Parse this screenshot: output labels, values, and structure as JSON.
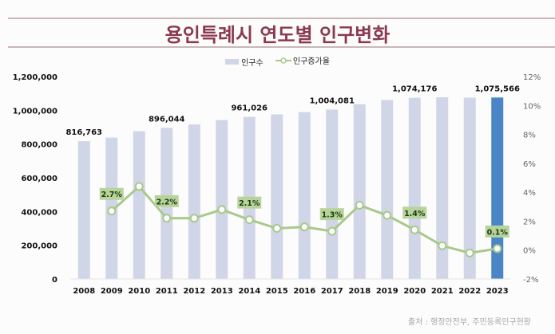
{
  "title": "용인특례시 연도별 인구변화",
  "legend": {
    "bar_label": "인구수",
    "line_label": "인구증가율"
  },
  "source": "출처 : 행정안전부, 주민등록인구현황",
  "colors": {
    "title": "#8a3a50",
    "bar": "#d0d6e8",
    "bar_highlight": "#4a86c5",
    "highlight_label": "#4a86c5",
    "line": "#a9c98a",
    "label_box": "#b8d49c"
  },
  "chart_data": {
    "type": "bar",
    "title": "용인특례시 연도별 인구변화",
    "categories": [
      "2008",
      "2009",
      "2010",
      "2011",
      "2012",
      "2013",
      "2014",
      "2015",
      "2016",
      "2017",
      "2018",
      "2019",
      "2020",
      "2021",
      "2022",
      "2023"
    ],
    "series": [
      {
        "name": "인구수",
        "type": "bar",
        "axis": "left",
        "values": [
          816763,
          838000,
          876000,
          896044,
          916000,
          942000,
          961026,
          976000,
          989000,
          1004081,
          1036000,
          1061000,
          1074176,
          1077000,
          1075000,
          1075566
        ],
        "data_labels": {
          "0": "816,763",
          "3": "896,044",
          "6": "961,026",
          "9": "1,004,081",
          "12": "1,074,176",
          "15": "1,075,566"
        },
        "highlight_index": 15
      },
      {
        "name": "인구증가율",
        "type": "line",
        "axis": "right",
        "unit": "%",
        "values": [
          null,
          2.7,
          4.4,
          2.2,
          2.2,
          2.8,
          2.1,
          1.5,
          1.6,
          1.3,
          3.1,
          2.4,
          1.4,
          0.3,
          -0.2,
          0.1
        ],
        "data_labels": {
          "1": "2.7%",
          "3": "2.2%",
          "6": "2.1%",
          "9": "1.3%",
          "12": "1.4%",
          "15": "0.1%"
        }
      }
    ],
    "left_axis": {
      "ylim": [
        0,
        1200000
      ],
      "ticks": [
        0,
        200000,
        400000,
        600000,
        800000,
        1000000,
        1200000
      ],
      "tick_labels": [
        "0",
        "200,000",
        "400,000",
        "600,000",
        "800,000",
        "1,000,000",
        "1,200,000"
      ]
    },
    "right_axis": {
      "ylim": [
        -2,
        12
      ],
      "ticks": [
        -2,
        0,
        2,
        4,
        6,
        8,
        10,
        12
      ],
      "tick_labels": [
        "-2%",
        "0%",
        "2%",
        "4%",
        "6%",
        "8%",
        "10%",
        "12%"
      ]
    },
    "grid": false,
    "legend_position": "top-center"
  }
}
